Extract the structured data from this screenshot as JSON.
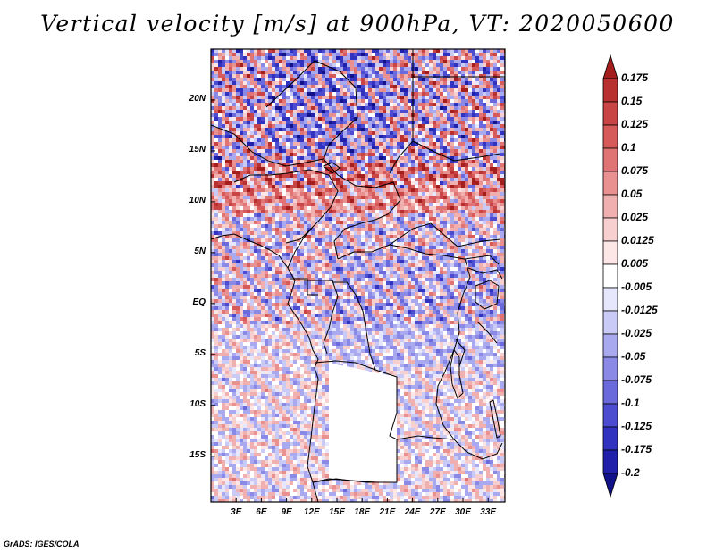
{
  "title": "Vertical velocity [m/s] at 900hPa, VT: 2020050600",
  "footer": "GrADS: IGES/COLA",
  "map": {
    "lon_range": [
      0,
      35
    ],
    "lat_range": [
      -19.5,
      25
    ],
    "lat_labels": [
      {
        "lat": 20,
        "text": "20N"
      },
      {
        "lat": 15,
        "text": "15N"
      },
      {
        "lat": 10,
        "text": "10N"
      },
      {
        "lat": 5,
        "text": "5N"
      },
      {
        "lat": 0,
        "text": "EQ"
      },
      {
        "lat": -5,
        "text": "5S"
      },
      {
        "lat": -10,
        "text": "10S"
      },
      {
        "lat": -15,
        "text": "15S"
      }
    ],
    "lon_labels": [
      {
        "lon": 3,
        "text": "3E"
      },
      {
        "lon": 6,
        "text": "6E"
      },
      {
        "lon": 9,
        "text": "9E"
      },
      {
        "lon": 12,
        "text": "12E"
      },
      {
        "lon": 15,
        "text": "15E"
      },
      {
        "lon": 18,
        "text": "18E"
      },
      {
        "lon": 21,
        "text": "21E"
      },
      {
        "lon": 24,
        "text": "24E"
      },
      {
        "lon": 27,
        "text": "27E"
      },
      {
        "lon": 30,
        "text": "30E"
      },
      {
        "lon": 33,
        "text": "33E"
      }
    ]
  },
  "colorbar": {
    "levels": [
      "0.175",
      "0.15",
      "0.125",
      "0.1",
      "0.075",
      "0.05",
      "0.025",
      "0.0125",
      "0.005",
      "-0.005",
      "-0.0125",
      "-0.025",
      "-0.05",
      "-0.075",
      "-0.1",
      "-0.125",
      "-0.175",
      "-0.2"
    ],
    "colors": [
      "#a41e1e",
      "#b83030",
      "#c94444",
      "#d65a5a",
      "#e07474",
      "#e99090",
      "#f1b0b0",
      "#f8cfcf",
      "#fde6e6",
      "#ffffff",
      "#e6e6fc",
      "#cacaf6",
      "#a9a9ef",
      "#8a8ae6",
      "#6a6add",
      "#4c4cd1",
      "#3232c0",
      "#2020aa",
      "#12128a"
    ]
  }
}
